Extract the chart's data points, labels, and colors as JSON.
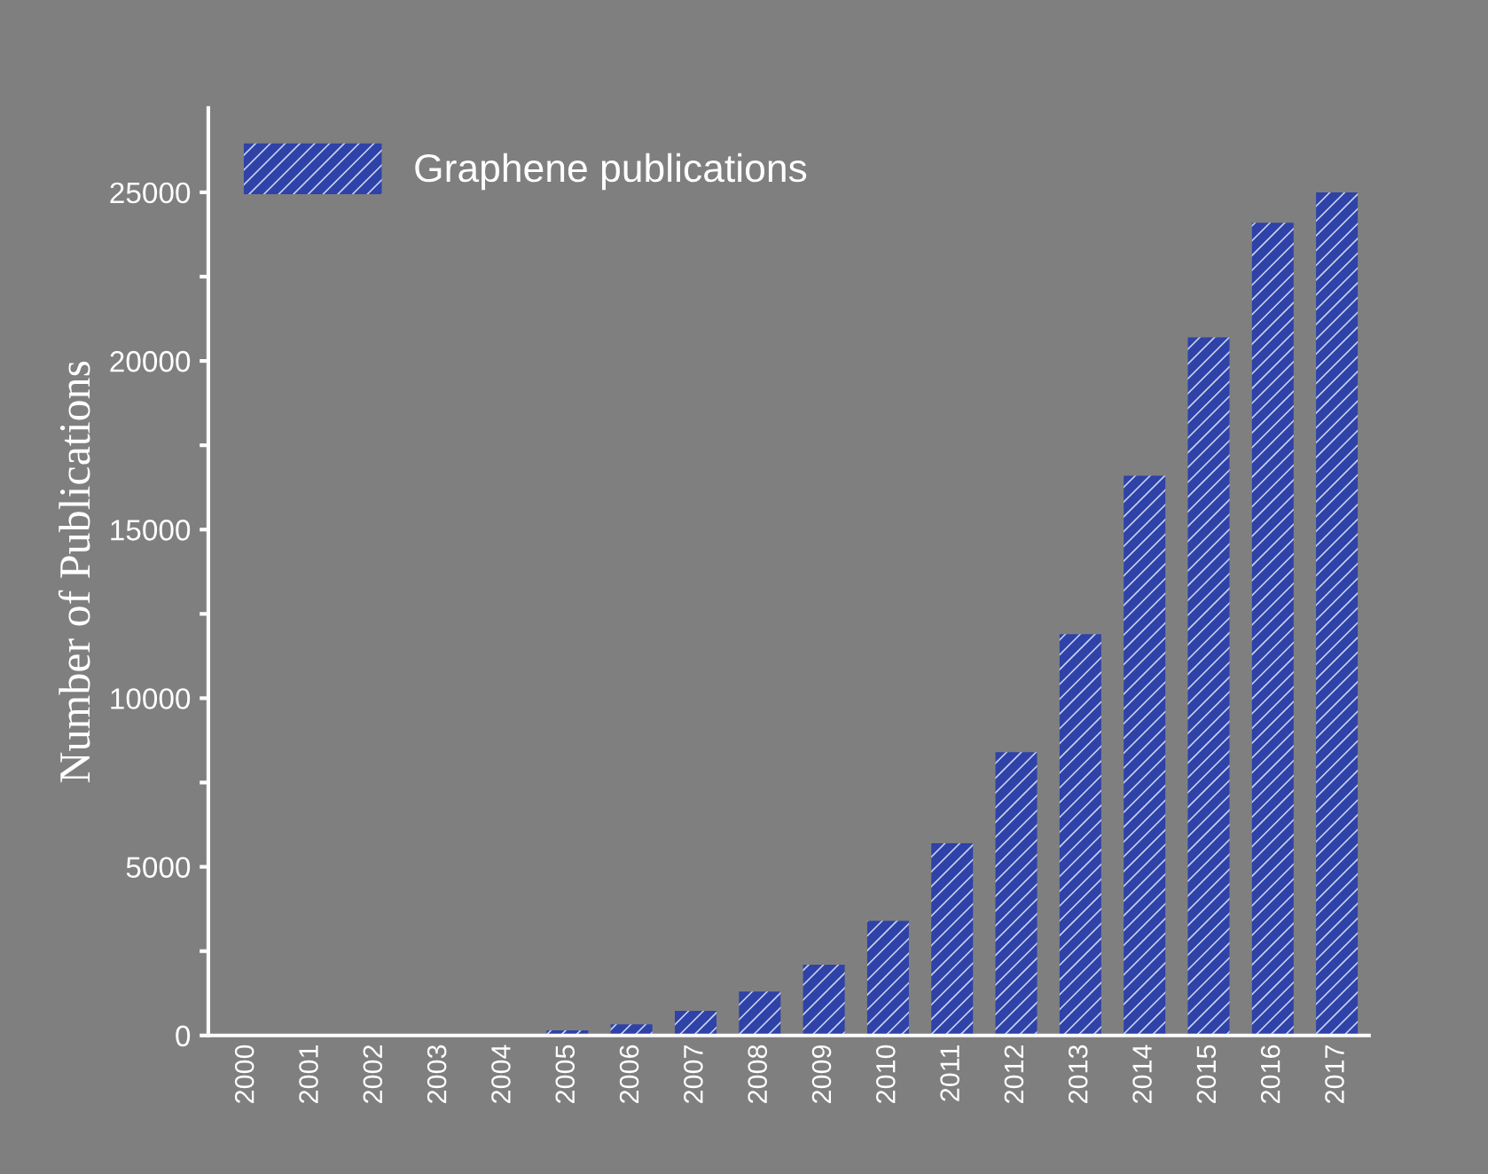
{
  "chart_data": {
    "type": "bar",
    "ylabel": "Number of Publications",
    "categories": [
      "2000",
      "2001",
      "2002",
      "2003",
      "2004",
      "2005",
      "2006",
      "2007",
      "2008",
      "2009",
      "2010",
      "2011",
      "2012",
      "2013",
      "2014",
      "2015",
      "2016",
      "2017"
    ],
    "series": [
      {
        "name": "Graphene publications",
        "color": "#2e42a8",
        "values": [
          null,
          null,
          null,
          null,
          null,
          150,
          330,
          730,
          1300,
          2100,
          3400,
          5700,
          8400,
          11900,
          16600,
          20700,
          24100,
          25000
        ]
      }
    ],
    "ylim": [
      0,
      27500
    ],
    "yticks": [
      0,
      {
        "value": 2500,
        "label": null
      },
      5000,
      {
        "value": 7500,
        "label": null
      },
      10000,
      {
        "value": 12500,
        "label": null
      },
      15000,
      {
        "value": 17500,
        "label": null
      },
      20000,
      {
        "value": 22500,
        "label": null
      },
      25000
    ],
    "grid": false,
    "legend": "top left"
  }
}
